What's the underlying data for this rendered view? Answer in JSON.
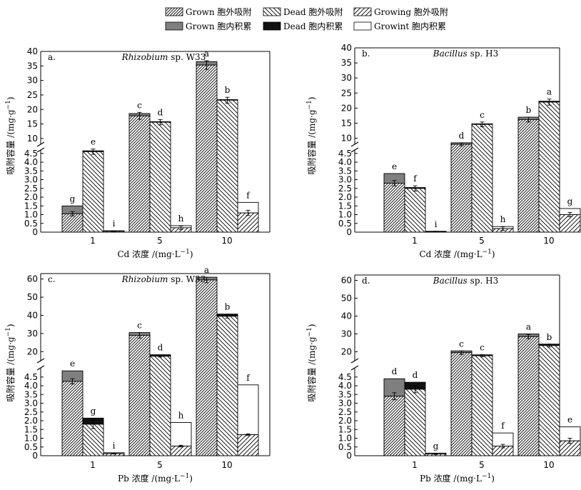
{
  "legend": {
    "entries": [
      {
        "key": "grown_ext",
        "label": "Grown 胞外吸附",
        "pattern": "diag-dense"
      },
      {
        "key": "dead_ext",
        "label": "Dead 胞外吸附",
        "pattern": "back-diag"
      },
      {
        "key": "growing_ext",
        "label": "Growing 胞外吸附",
        "pattern": "diag-sparse"
      },
      {
        "key": "grown_int",
        "label": "Grown 胞内积累",
        "pattern": "gray"
      },
      {
        "key": "dead_int",
        "label": "Dead 胞内积累",
        "pattern": "black"
      },
      {
        "key": "growing_int",
        "label": "Growint 胞内积累",
        "pattern": "white"
      }
    ]
  },
  "colors": {
    "gray": "#7f7f7f",
    "black": "#111111",
    "white": "#ffffff",
    "line": "#000000"
  },
  "chart_data": [
    {
      "type": "bar",
      "panel": "a.",
      "title_species": "Rhizobium",
      "title_strain": "sp. W33",
      "categories": [
        "1",
        "5",
        "10"
      ],
      "xlabel_prefix": "Cd 浓度 /(mg·L",
      "xlabel_sup": "−1",
      "xlabel_suffix": ")",
      "ylabel": "吸附容量 /(mg·g",
      "ylabel_sup": "−1",
      "ylabel_suffix": ")",
      "ylim_lower": [
        0,
        4.9
      ],
      "ylim_upper": [
        8,
        40
      ],
      "ticks_lower": [
        "0",
        "0.5",
        "1.0",
        "1.5",
        "2.0",
        "2.5",
        "3.0",
        "3.5",
        "4.0",
        "4.5"
      ],
      "ticks_upper": [
        "10",
        "15",
        "20",
        "25",
        "30",
        "35",
        "40"
      ],
      "series_order": [
        "grown",
        "dead",
        "growing"
      ],
      "bars": {
        "grown": [
          {
            "ext": 1.05,
            "int": 0.45,
            "err": 0.12,
            "letter": "g"
          },
          {
            "ext": 17.8,
            "int": 0.8,
            "err": 1.2,
            "letter": "c"
          },
          {
            "ext": 35.3,
            "int": 1.2,
            "err": 1.5,
            "letter": "a"
          }
        ],
        "dead": [
          {
            "ext": 4.6,
            "int": 0.05,
            "err": 0.15,
            "letter": "e"
          },
          {
            "ext": 15.6,
            "int": 0.2,
            "err": 0.9,
            "letter": "d"
          },
          {
            "ext": 23.2,
            "int": 0.2,
            "err": 1.0,
            "letter": "b"
          }
        ],
        "growing": [
          {
            "ext": 0.05,
            "int": 0.03,
            "err": 0.02,
            "letter": "i"
          },
          {
            "ext": 0.25,
            "int": 0.12,
            "err": 0.1,
            "letter": "h"
          },
          {
            "ext": 1.1,
            "int": 0.6,
            "err": 0.15,
            "letter": "f"
          }
        ]
      }
    },
    {
      "type": "bar",
      "panel": "b.",
      "title_species": "Bacillus",
      "title_strain": "sp. H3",
      "categories": [
        "1",
        "5",
        "10"
      ],
      "xlabel_prefix": "Cd 浓度 /(mg·L",
      "xlabel_sup": "−1",
      "xlabel_suffix": ")",
      "ylabel": "吸附容量 /(mg·g",
      "ylabel_sup": "−1",
      "ylabel_suffix": ")",
      "ylim_lower": [
        0,
        4.9
      ],
      "ylim_upper": [
        8,
        40
      ],
      "ticks_lower": [
        "0",
        "0.5",
        "1.0",
        "1.5",
        "2.0",
        "2.5",
        "3.0",
        "3.5",
        "4.0",
        "4.5"
      ],
      "ticks_upper": [
        "10",
        "15",
        "20",
        "25",
        "30",
        "35",
        "40"
      ],
      "series_order": [
        "grown",
        "dead",
        "growing"
      ],
      "bars": {
        "grown": [
          {
            "ext": 2.8,
            "int": 0.55,
            "err": 0.15,
            "letter": "e"
          },
          {
            "ext": 8.0,
            "int": 0.5,
            "err": 0.5,
            "letter": "d"
          },
          {
            "ext": 16.2,
            "int": 0.8,
            "err": 0.8,
            "letter": "b"
          }
        ],
        "dead": [
          {
            "ext": 2.5,
            "int": 0.05,
            "err": 0.15,
            "letter": "f"
          },
          {
            "ext": 14.6,
            "int": 0.2,
            "err": 0.8,
            "letter": "c"
          },
          {
            "ext": 22.0,
            "int": 0.3,
            "err": 1.0,
            "letter": "a"
          }
        ],
        "growing": [
          {
            "ext": 0.03,
            "int": 0.02,
            "err": 0.02,
            "letter": "i"
          },
          {
            "ext": 0.2,
            "int": 0.12,
            "err": 0.1,
            "letter": "h"
          },
          {
            "ext": 1.0,
            "int": 0.35,
            "err": 0.12,
            "letter": "g"
          }
        ]
      }
    },
    {
      "type": "bar",
      "panel": "c.",
      "title_species": "Rhizobium",
      "title_strain": "sp. W33",
      "categories": [
        "1",
        "5",
        "10"
      ],
      "xlabel_prefix": "Pb 浓度 /(mg·L",
      "xlabel_sup": "−1",
      "xlabel_suffix": ")",
      "ylabel": "吸附容量 /(mg·g",
      "ylabel_sup": "−1",
      "ylabel_suffix": ")",
      "ylim_lower": [
        0,
        4.9
      ],
      "ylim_upper": [
        15,
        63
      ],
      "ticks_lower": [
        "0",
        "0.5",
        "1.0",
        "1.5",
        "2.0",
        "2.5",
        "3.0",
        "3.5",
        "4.0",
        "4.5"
      ],
      "ticks_upper": [
        "20",
        "30",
        "40",
        "50",
        "60"
      ],
      "series_order": [
        "grown",
        "dead",
        "growing"
      ],
      "bars": {
        "grown": [
          {
            "ext": 4.25,
            "int": 0.6,
            "err": 0.15,
            "letter": "e"
          },
          {
            "ext": 29.0,
            "int": 1.5,
            "err": 1.5,
            "letter": "c"
          },
          {
            "ext": 59.5,
            "int": 1.5,
            "err": 1.5,
            "letter": "a"
          }
        ],
        "dead": [
          {
            "ext": 1.8,
            "int": 0.35,
            "err": 0.25,
            "letter": "g"
          },
          {
            "ext": 17.5,
            "int": 0.8,
            "err": 0.5,
            "letter": "d"
          },
          {
            "ext": 39.5,
            "int": 1.2,
            "err": 1.0,
            "letter": "b"
          }
        ],
        "growing": [
          {
            "ext": 0.12,
            "int": 0.05,
            "err": 0.02,
            "letter": "i"
          },
          {
            "ext": 0.55,
            "int": 1.35,
            "err": 0.05,
            "letter": "h"
          },
          {
            "ext": 1.2,
            "int": 2.85,
            "err": 0.05,
            "letter": "f"
          }
        ]
      }
    },
    {
      "type": "bar",
      "panel": "d.",
      "title_species": "Bacillus",
      "title_strain": "sp. H3",
      "categories": [
        "1",
        "5",
        "10"
      ],
      "xlabel_prefix": "Pb 浓度 /(mg·L",
      "xlabel_sup": "−1",
      "xlabel_suffix": ")",
      "ylabel": "吸附容量 /(mg·g",
      "ylabel_sup": "−1",
      "ylabel_suffix": ")",
      "ylim_lower": [
        0,
        4.9
      ],
      "ylim_upper": [
        15,
        63
      ],
      "ticks_lower": [
        "0",
        "0.5",
        "1.0",
        "1.5",
        "2.0",
        "2.5",
        "3.0",
        "3.5",
        "4.0",
        "4.5"
      ],
      "ticks_upper": [
        "20",
        "30",
        "40",
        "50",
        "60"
      ],
      "series_order": [
        "grown",
        "dead",
        "growing"
      ],
      "bars": {
        "grown": [
          {
            "ext": 3.4,
            "int": 1.0,
            "err": 0.2,
            "letter": "d"
          },
          {
            "ext": 19.5,
            "int": 1.0,
            "err": 1.0,
            "letter": "c"
          },
          {
            "ext": 28.5,
            "int": 1.5,
            "err": 1.2,
            "letter": "a"
          }
        ],
        "dead": [
          {
            "ext": 3.8,
            "int": 0.4,
            "err": 0.2,
            "letter": "d"
          },
          {
            "ext": 17.8,
            "int": 0.5,
            "err": 0.6,
            "letter": "c"
          },
          {
            "ext": 23.5,
            "int": 0.8,
            "err": 0.8,
            "letter": "b"
          }
        ],
        "growing": [
          {
            "ext": 0.1,
            "int": 0.05,
            "err": 0.03,
            "letter": "g"
          },
          {
            "ext": 0.55,
            "int": 0.75,
            "err": 0.1,
            "letter": "f"
          },
          {
            "ext": 0.85,
            "int": 0.8,
            "err": 0.15,
            "letter": "e"
          }
        ]
      }
    }
  ]
}
